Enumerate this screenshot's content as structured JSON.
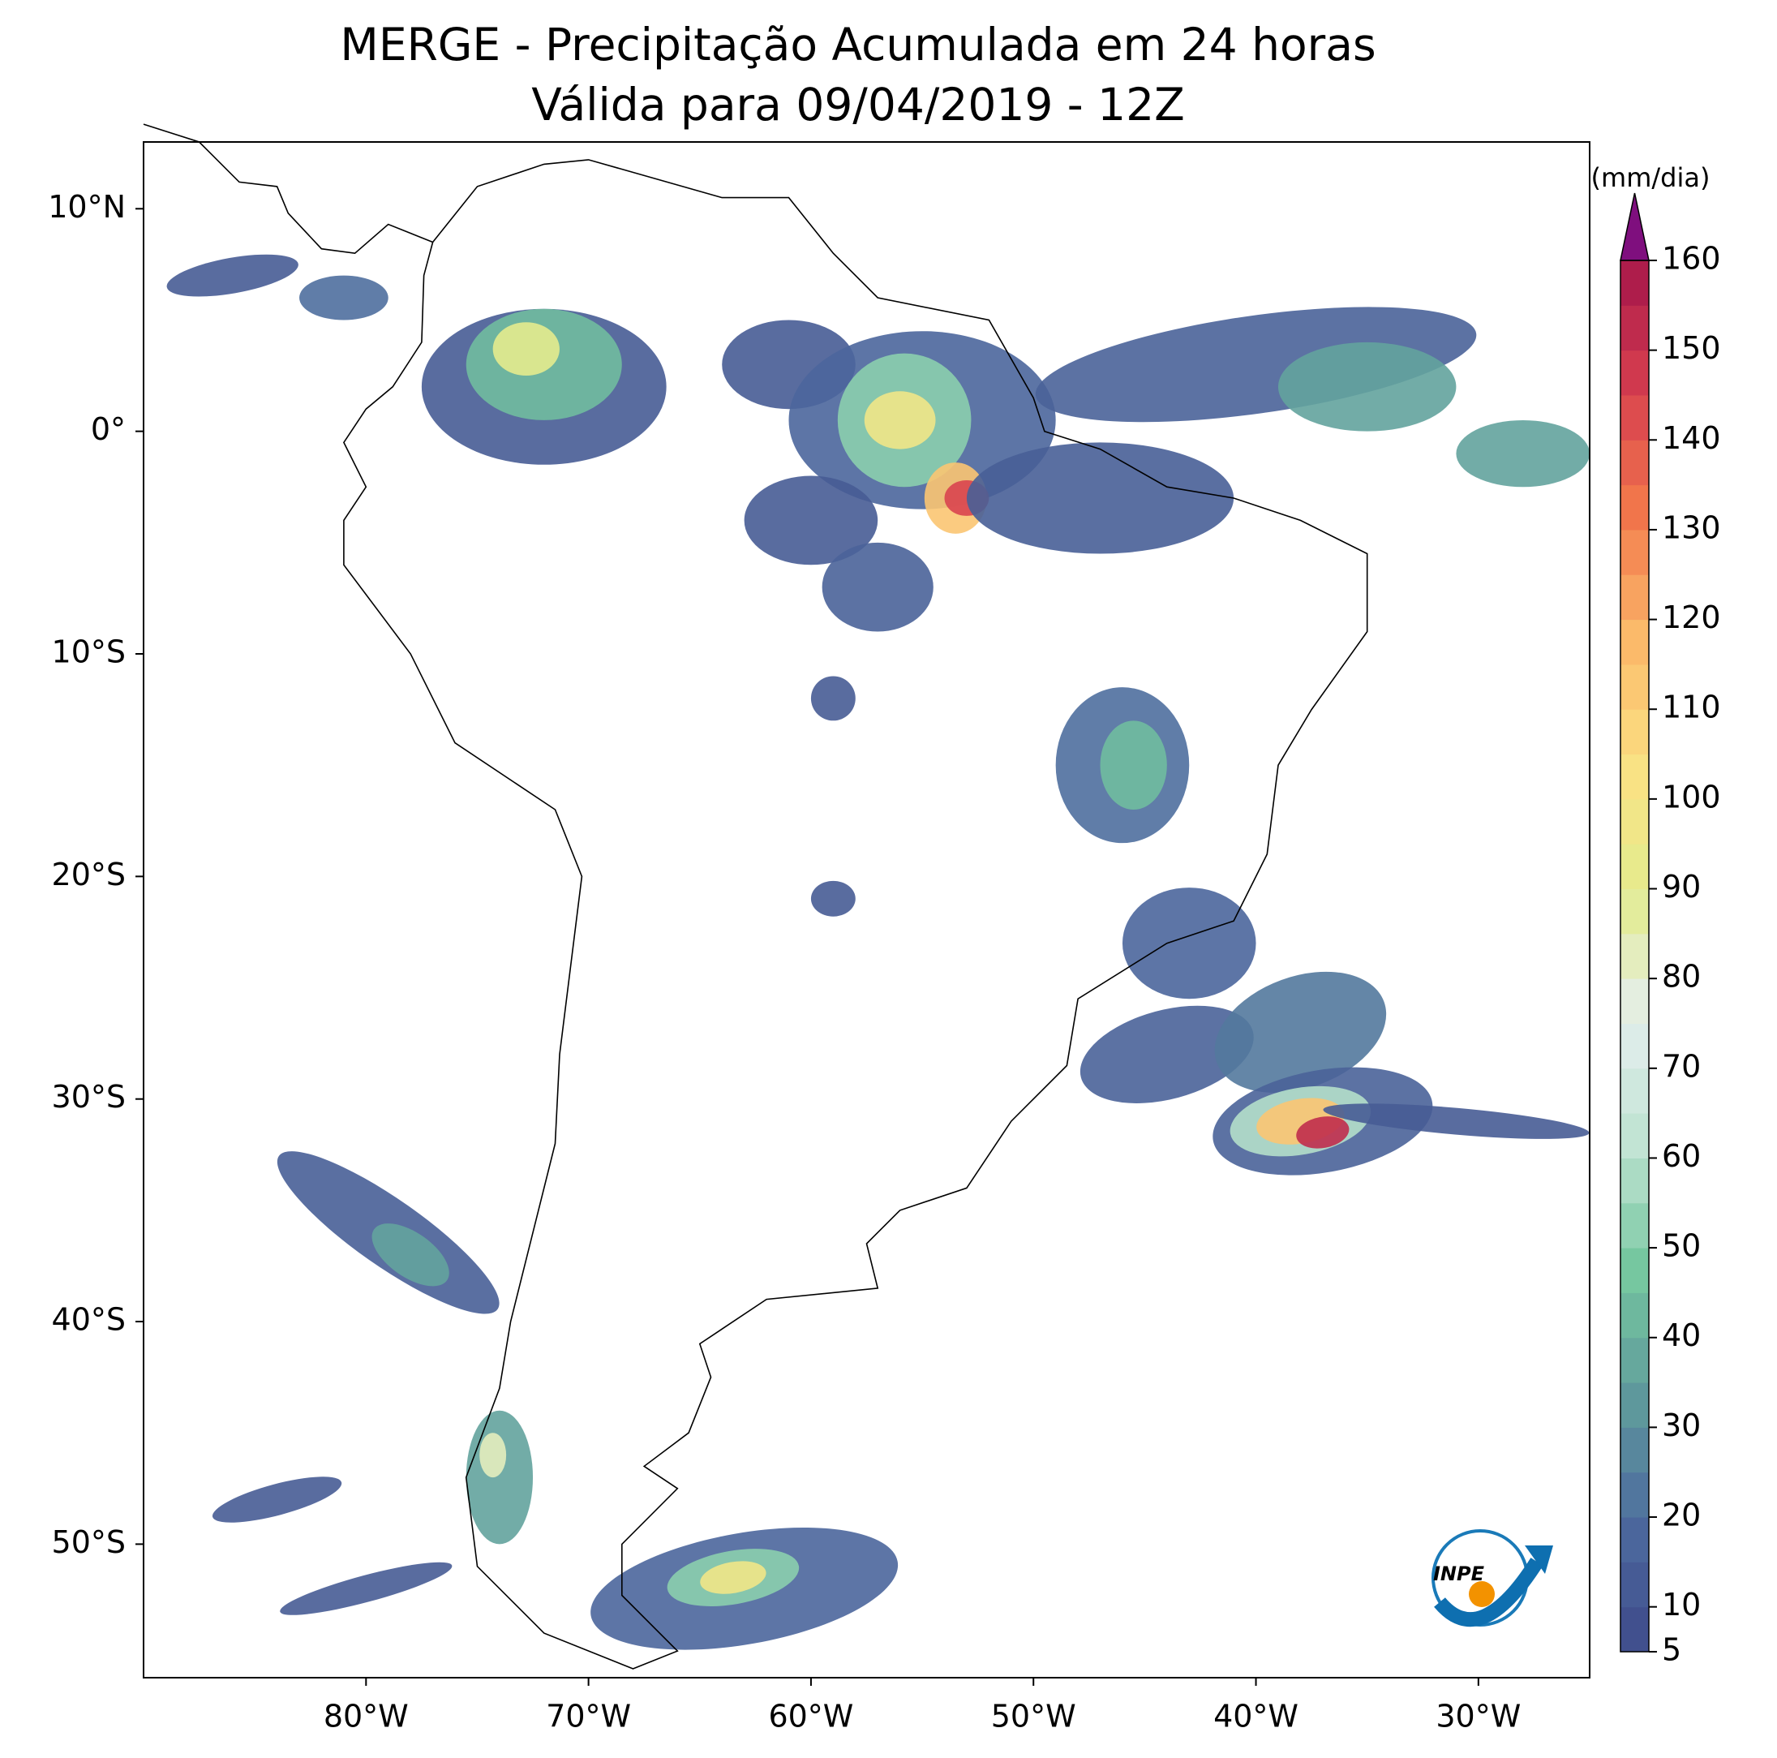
{
  "title": [
    "MERGE - Precipitação Acumulada em 24 horas",
    "Válida para 09/04/2019 - 12Z"
  ],
  "map": {
    "lonlim": [
      -90,
      -25
    ],
    "latlim": [
      -56,
      13
    ],
    "lon_ticks": [
      {
        "value": -80,
        "label": "80°W"
      },
      {
        "value": -70,
        "label": "70°W"
      },
      {
        "value": -60,
        "label": "60°W"
      },
      {
        "value": -50,
        "label": "50°W"
      },
      {
        "value": -40,
        "label": "40°W"
      },
      {
        "value": -30,
        "label": "30°W"
      }
    ],
    "lat_ticks": [
      {
        "value": 10,
        "label": "10°N"
      },
      {
        "value": 0,
        "label": "0°"
      },
      {
        "value": -10,
        "label": "10°S"
      },
      {
        "value": -20,
        "label": "20°S"
      },
      {
        "value": -30,
        "label": "30°S"
      },
      {
        "value": -40,
        "label": "40°S"
      },
      {
        "value": -50,
        "label": "50°S"
      }
    ]
  },
  "colorbar": {
    "label": "(mm/dia)",
    "range": [
      5,
      160
    ],
    "ticks": [
      5,
      10,
      20,
      30,
      40,
      50,
      60,
      70,
      80,
      90,
      100,
      110,
      120,
      130,
      140,
      150,
      160
    ],
    "colors": [
      "#3f4a8a",
      "#4d6a9e",
      "#5f9a9c",
      "#75c79f",
      "#bfe3d2",
      "#e4eeee",
      "#e3ec8e",
      "#fbe183",
      "#fbb96a",
      "#f2784b",
      "#d63e4f",
      "#a5164a"
    ],
    "extend_color": "#7f0f7e"
  },
  "logo": "INPE"
}
